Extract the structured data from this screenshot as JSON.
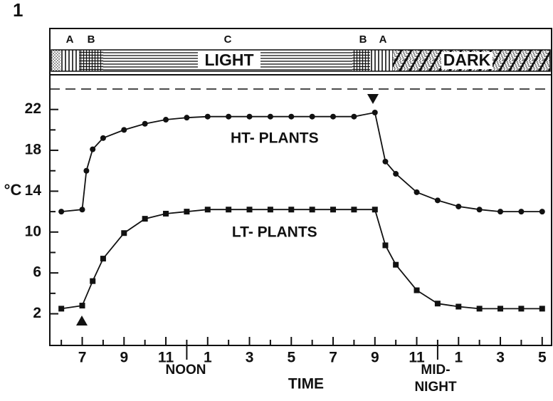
{
  "chart_data": {
    "type": "line",
    "figure_label": "1",
    "y_label": "°C",
    "x_label": "TIME",
    "noon_label": "NOON",
    "midnight_label": [
      "MID-",
      "NIGHT"
    ],
    "band_letters": [
      "A",
      "B",
      "C",
      "B",
      "A"
    ],
    "light_label": "LIGHT",
    "dark_label": "DARK",
    "xlim": [
      5.45,
      29.45
    ],
    "ylim": [
      -1.1,
      24
    ],
    "xticks": [
      7,
      9,
      11,
      {
        "value": 13,
        "label": "1"
      },
      {
        "value": 15,
        "label": "3"
      },
      {
        "value": 17,
        "label": "5"
      },
      {
        "value": 19,
        "label": "7"
      },
      {
        "value": 21,
        "label": "9"
      },
      {
        "value": 23,
        "label": "11"
      },
      {
        "value": 25,
        "label": "1"
      },
      {
        "value": 27,
        "label": "3"
      },
      {
        "value": 29,
        "label": "5"
      }
    ],
    "xminor_ticks": [
      6,
      8,
      10,
      12,
      14,
      16,
      18,
      20,
      22,
      24,
      26,
      28
    ],
    "yticks": [
      2,
      6,
      10,
      14,
      18,
      22
    ],
    "yminor_ticks": [
      4,
      8,
      12,
      16,
      20
    ],
    "series": [
      {
        "name": "HT- PLANTS",
        "marker": "circle",
        "color": "#111",
        "x": [
          6,
          7,
          7.2,
          7.5,
          8,
          9,
          10,
          11,
          12,
          13,
          14,
          15,
          16,
          17,
          18,
          19,
          20,
          21,
          21.5,
          22,
          23,
          24,
          25,
          26,
          27,
          28,
          29
        ],
        "values": [
          12.0,
          12.2,
          16.0,
          18.1,
          19.2,
          20.0,
          20.6,
          21.0,
          21.2,
          21.3,
          21.3,
          21.3,
          21.3,
          21.3,
          21.3,
          21.3,
          21.3,
          21.7,
          16.9,
          15.7,
          13.9,
          13.1,
          12.5,
          12.2,
          12.0,
          12.0,
          12.0
        ]
      },
      {
        "name": "LT- PLANTS",
        "marker": "square",
        "color": "#111",
        "x": [
          6,
          7,
          7.5,
          8,
          9,
          10,
          11,
          12,
          13,
          14,
          15,
          16,
          17,
          18,
          19,
          20,
          21,
          21.5,
          22,
          23,
          24,
          25,
          26,
          27,
          28,
          29
        ],
        "values": [
          2.5,
          2.8,
          5.2,
          7.4,
          9.9,
          11.3,
          11.8,
          12.0,
          12.2,
          12.2,
          12.2,
          12.2,
          12.2,
          12.2,
          12.2,
          12.2,
          12.2,
          8.7,
          6.8,
          4.3,
          3.0,
          2.7,
          2.5,
          2.5,
          2.5,
          2.5
        ]
      }
    ]
  }
}
